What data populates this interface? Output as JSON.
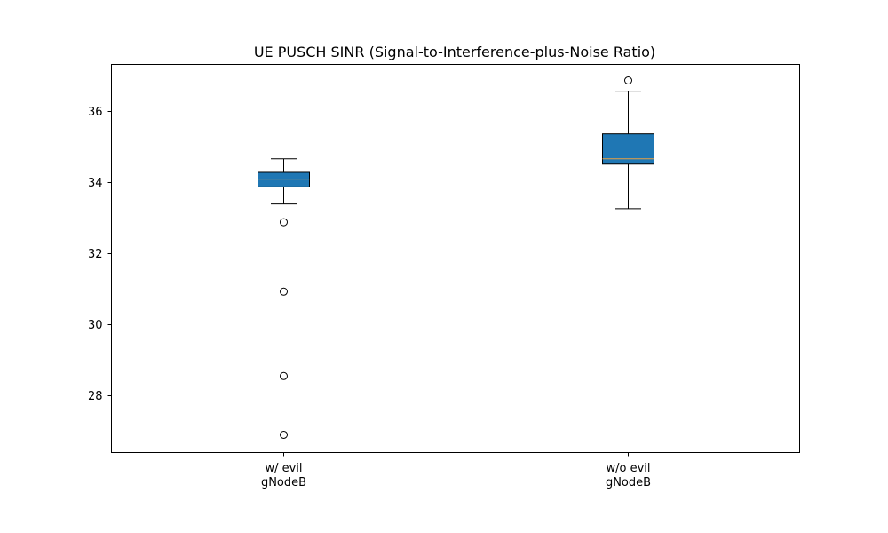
{
  "chart_data": {
    "type": "box",
    "title": "UE PUSCH SINR (Signal-to-Interference-plus-Noise Ratio)",
    "xlabel": "",
    "ylabel": "",
    "ylim": [
      26.4,
      37.3
    ],
    "yticks": [
      28,
      30,
      32,
      34,
      36
    ],
    "grid": false,
    "categories": [
      {
        "line1": "w/ evil",
        "line2": "gNodeB"
      },
      {
        "line1": "w/o evil",
        "line2": "gNodeB"
      }
    ],
    "boxes": [
      {
        "whisker_low": 33.38,
        "q1": 33.86,
        "median": 34.08,
        "q3": 34.27,
        "whisker_high": 34.65,
        "outliers": [
          32.87,
          30.92,
          28.55,
          26.9
        ]
      },
      {
        "whisker_low": 33.25,
        "q1": 34.5,
        "median": 34.65,
        "q3": 35.35,
        "whisker_high": 36.55,
        "outliers": [
          36.85
        ]
      }
    ],
    "colors": {
      "box_fill": "#1f77b4",
      "median": "#e8a043",
      "edge": "#000000"
    }
  }
}
